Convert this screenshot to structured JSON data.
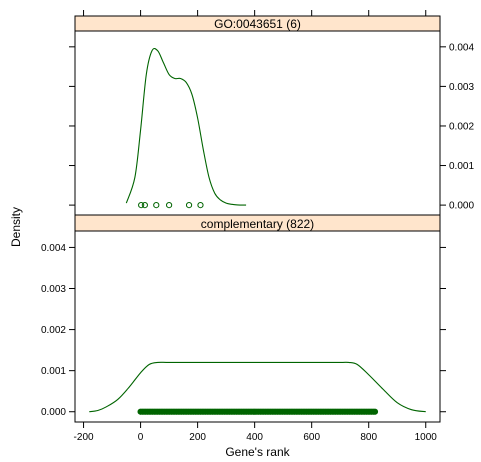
{
  "chart_data": {
    "type": "line",
    "chart_kind": "lattice densityplot (2 conditioned panels, shared axes)",
    "xlabel": "Gene's rank",
    "ylabel": "Density",
    "xlim": [
      -230,
      1050
    ],
    "ylim": [
      -0.00025,
      0.0044
    ],
    "x_ticks": [
      -200,
      0,
      200,
      400,
      600,
      800,
      1000
    ],
    "y_ticks": [
      0.0,
      0.001,
      0.002,
      0.003,
      0.004
    ],
    "y_tick_labels": [
      "0.000",
      "0.001",
      "0.002",
      "0.003",
      "0.004"
    ],
    "line_color": "#006400",
    "strip_color": "#ffe5cc",
    "panels": [
      {
        "strip_label": "GO:0043651  (6)",
        "density_x": [
          -50,
          -20,
          0,
          20,
          40,
          60,
          80,
          100,
          120,
          140,
          160,
          180,
          200,
          220,
          240,
          260,
          280,
          300,
          320,
          340,
          370
        ],
        "density_y": [
          5e-05,
          0.0007,
          0.0019,
          0.0033,
          0.0039,
          0.0039,
          0.0036,
          0.0033,
          0.0032,
          0.0032,
          0.0031,
          0.0028,
          0.0022,
          0.0014,
          0.0007,
          0.0003,
          0.00013,
          5e-05,
          2e-05,
          5e-06,
          0.0
        ],
        "points_x": [
          2,
          15,
          55,
          100,
          170,
          210
        ]
      },
      {
        "strip_label": "complementary  (822)",
        "density_x": [
          -180,
          -150,
          -120,
          -80,
          -40,
          0,
          30,
          60,
          100,
          200,
          300,
          400,
          500,
          600,
          700,
          730,
          760,
          800,
          850,
          900,
          950,
          1000
        ],
        "density_y": [
          0.0,
          3e-05,
          0.00012,
          0.0003,
          0.0006,
          0.00095,
          0.00115,
          0.0012,
          0.0012,
          0.0012,
          0.0012,
          0.0012,
          0.0012,
          0.0012,
          0.0012,
          0.0012,
          0.00115,
          0.0009,
          0.00055,
          0.00022,
          5e-05,
          0.0
        ],
        "points_x_range": [
          0,
          822
        ]
      }
    ]
  }
}
